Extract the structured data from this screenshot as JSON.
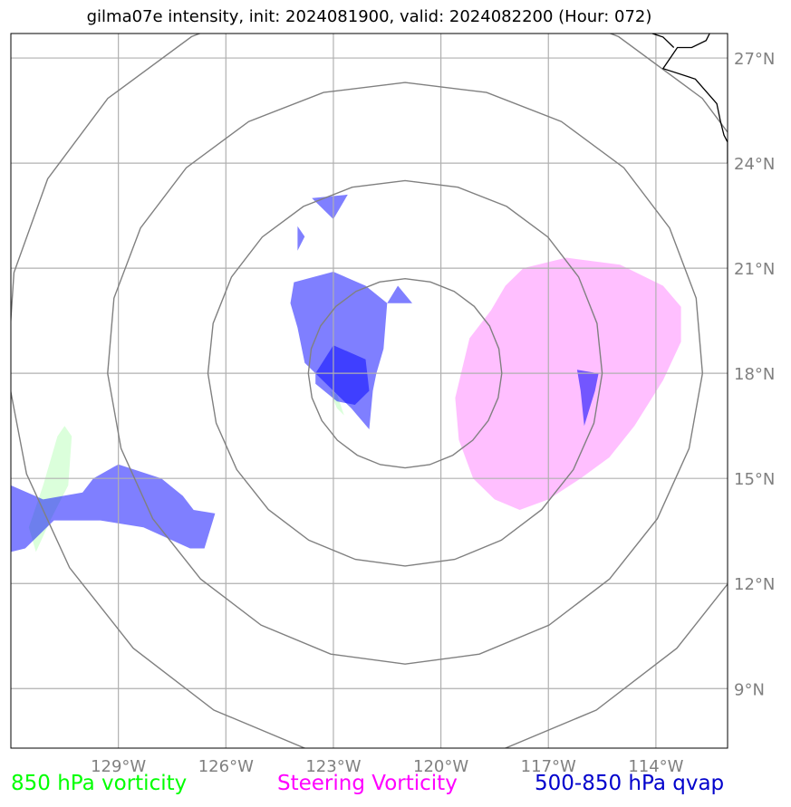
{
  "title": "gilma07e intensity, init: 2024081900, valid: 2024082200 (Hour: 072)",
  "map": {
    "lon_range": [
      -132,
      -112
    ],
    "lat_range": [
      7.3,
      27.7
    ],
    "lon_ticks": [
      {
        "value": -129,
        "label": "129°W"
      },
      {
        "value": -126,
        "label": "126°W"
      },
      {
        "value": -123,
        "label": "123°W"
      },
      {
        "value": -120,
        "label": "120°W"
      },
      {
        "value": -117,
        "label": "117°W"
      },
      {
        "value": -114,
        "label": "114°W"
      }
    ],
    "lat_ticks": [
      {
        "value": 27,
        "label": "27°N"
      },
      {
        "value": 24,
        "label": "24°N"
      },
      {
        "value": 21,
        "label": "21°N"
      },
      {
        "value": 18,
        "label": "18°N"
      },
      {
        "value": 15,
        "label": "15°N"
      },
      {
        "value": 12,
        "label": "12°N"
      },
      {
        "value": 9,
        "label": "9°N"
      }
    ],
    "range_rings": {
      "center_lon": -121,
      "center_lat": 18,
      "radii_deg": [
        2.7,
        5.5,
        8.3,
        11.1
      ],
      "color": "#808080"
    },
    "grid": true,
    "colors": {
      "vort850": "#ccffcc",
      "steering": "#ffaaff",
      "qvap": "#0000ff",
      "coast": "#000000"
    },
    "fields": {
      "vort850": [
        [
          [
            -130.7,
            16.2
          ],
          [
            -130.5,
            16.5
          ],
          [
            -130.3,
            16.2
          ],
          [
            -130.4,
            14.8
          ],
          [
            -130.9,
            13.8
          ],
          [
            -131.3,
            12.9
          ],
          [
            -131.5,
            13.6
          ],
          [
            -131.1,
            14.8
          ]
        ],
        [
          [
            -123.1,
            17.5
          ],
          [
            -122.9,
            17.0
          ],
          [
            -122.7,
            16.8
          ],
          [
            -122.9,
            17.4
          ]
        ]
      ],
      "steering": [
        [
          [
            -119.6,
            17.3
          ],
          [
            -119.2,
            19.0
          ],
          [
            -118.6,
            19.8
          ],
          [
            -118.2,
            20.5
          ],
          [
            -117.7,
            21.0
          ],
          [
            -116.5,
            21.3
          ],
          [
            -115.0,
            21.1
          ],
          [
            -113.8,
            20.5
          ],
          [
            -113.3,
            19.9
          ],
          [
            -113.3,
            18.9
          ],
          [
            -113.8,
            17.8
          ],
          [
            -114.6,
            16.5
          ],
          [
            -115.3,
            15.6
          ],
          [
            -116.1,
            15.0
          ],
          [
            -117.0,
            14.4
          ],
          [
            -117.8,
            14.1
          ],
          [
            -118.5,
            14.4
          ],
          [
            -119.1,
            15.0
          ],
          [
            -119.5,
            16.1
          ]
        ]
      ],
      "qvap": [
        [
          [
            -124.1,
            20.6
          ],
          [
            -123.0,
            20.9
          ],
          [
            -122.1,
            20.5
          ],
          [
            -121.5,
            20.0
          ],
          [
            -121.6,
            18.7
          ],
          [
            -121.8,
            18.0
          ],
          [
            -121.9,
            17.5
          ],
          [
            -122.0,
            16.4
          ],
          [
            -122.5,
            17.0
          ],
          [
            -123.1,
            17.6
          ],
          [
            -123.8,
            18.3
          ],
          [
            -124.0,
            19.3
          ],
          [
            -124.2,
            20.0
          ]
        ],
        [
          [
            -123.5,
            18.0
          ],
          [
            -123.0,
            18.8
          ],
          [
            -122.1,
            18.4
          ],
          [
            -122.0,
            17.5
          ],
          [
            -122.4,
            17.1
          ],
          [
            -122.9,
            17.2
          ],
          [
            -123.5,
            17.7
          ]
        ],
        [
          [
            -132.0,
            14.8
          ],
          [
            -131.1,
            14.4
          ],
          [
            -130.0,
            14.6
          ],
          [
            -129.7,
            15.0
          ],
          [
            -129.0,
            15.4
          ],
          [
            -127.8,
            15.0
          ],
          [
            -127.2,
            14.5
          ],
          [
            -126.9,
            14.1
          ],
          [
            -126.3,
            14.0
          ],
          [
            -126.6,
            13.0
          ],
          [
            -127.0,
            13.0
          ],
          [
            -128.3,
            13.6
          ],
          [
            -129.5,
            13.8
          ],
          [
            -130.8,
            13.8
          ],
          [
            -131.6,
            13.0
          ],
          [
            -132.0,
            12.9
          ]
        ],
        [
          [
            -121.5,
            20.0
          ],
          [
            -121.2,
            20.5
          ],
          [
            -120.8,
            20.0
          ]
        ]
      ],
      "qvap_small": [
        [
          [
            -123.6,
            23.0
          ],
          [
            -122.6,
            23.1
          ],
          [
            -123.0,
            22.4
          ]
        ],
        [
          [
            -124.0,
            22.2
          ],
          [
            -123.8,
            21.9
          ],
          [
            -124.0,
            21.5
          ]
        ]
      ],
      "qvap_overlap": [
        [
          [
            -116.2,
            18.1
          ],
          [
            -115.6,
            18.0
          ],
          [
            -115.7,
            17.5
          ],
          [
            -116.0,
            16.5
          ],
          [
            -116.1,
            17.5
          ]
        ]
      ],
      "coast": [
        [
          [
            -112.5,
            27.7
          ],
          [
            -112.6,
            27.5
          ],
          [
            -113.0,
            27.3
          ],
          [
            -113.4,
            27.3
          ],
          [
            -113.6,
            27.0
          ],
          [
            -113.8,
            26.7
          ],
          [
            -112.9,
            26.4
          ],
          [
            -112.3,
            25.7
          ],
          [
            -112.2,
            25.2
          ],
          [
            -112.1,
            24.8
          ],
          [
            -112.0,
            24.6
          ],
          [
            -112.0,
            24.0
          ]
        ],
        [
          [
            -114.1,
            27.7
          ],
          [
            -113.8,
            27.6
          ],
          [
            -113.5,
            27.3
          ]
        ]
      ]
    }
  },
  "legend": {
    "vort850": {
      "label": "850 hPa vorticity",
      "color": "#00ff00"
    },
    "steering": {
      "label": "Steering Vorticity",
      "color": "#ff00ff"
    },
    "qvap": {
      "label": "500-850 hPa qvap",
      "color": "#0000cc"
    }
  }
}
